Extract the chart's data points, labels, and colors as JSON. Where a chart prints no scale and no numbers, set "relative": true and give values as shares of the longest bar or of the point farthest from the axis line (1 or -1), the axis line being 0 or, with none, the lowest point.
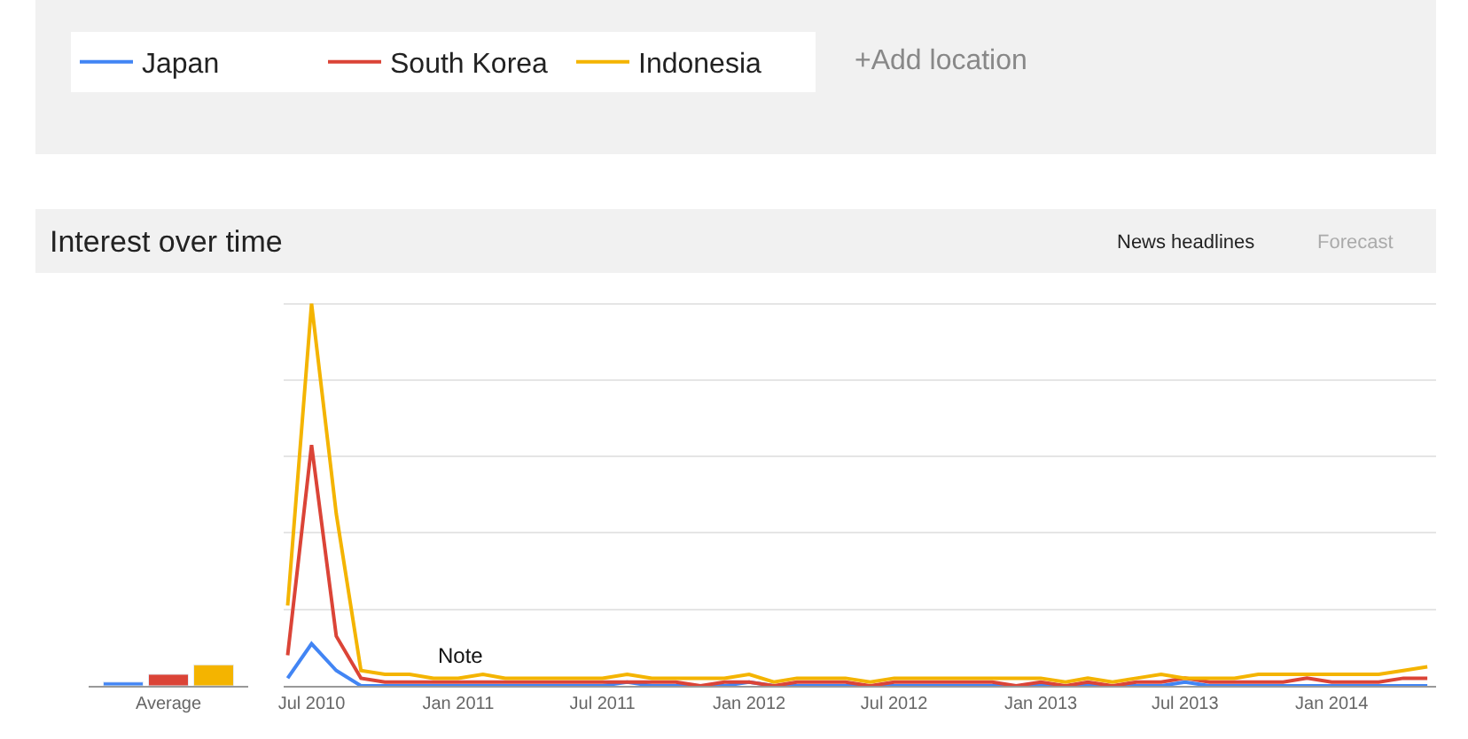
{
  "chart_data": [
    {
      "type": "bar",
      "relative": true,
      "categories": [
        "Average"
      ],
      "series": [
        {
          "color": "#4285f4",
          "values": [
            0.18
          ]
        },
        {
          "color": "#db4437",
          "values": [
            0.55
          ]
        },
        {
          "color": "#f4b400",
          "values": [
            1
          ]
        }
      ]
    },
    {
      "type": "line",
      "title": "Interest over time",
      "relative": true,
      "grid": "y",
      "legend": "top left",
      "marker": "none",
      "line_style": "solid",
      "annotations": [
        "+Add location",
        "News headlines",
        "Forecast",
        {
          "text": "Note",
          "x": "2010-12",
          "y": 0.03
        }
      ],
      "xlim": [
        "2010-05-27",
        "2014-05-12"
      ],
      "xticks": [
        {
          "value": "2010-07",
          "label": "Jul 2010"
        },
        {
          "value": "2011-01",
          "label": "Jan 2011"
        },
        {
          "value": "2011-07",
          "label": "Jul 2011"
        },
        {
          "value": "2012-01",
          "label": "Jan 2012"
        },
        {
          "value": "2012-07",
          "label": "Jul 2012"
        },
        {
          "value": "2013-01",
          "label": "Jan 2013"
        },
        {
          "value": "2013-07",
          "label": "Jul 2013"
        },
        {
          "value": "2014-01",
          "label": "Jan 2014"
        }
      ],
      "x": [
        "2010-06",
        "2010-07",
        "2010-08",
        "2010-09",
        "2010-10",
        "2010-11",
        "2010-12",
        "2011-01",
        "2011-02",
        "2011-03",
        "2011-04",
        "2011-05",
        "2011-06",
        "2011-07",
        "2011-08",
        "2011-09",
        "2011-10",
        "2011-11",
        "2011-12",
        "2012-01",
        "2012-02",
        "2012-03",
        "2012-04",
        "2012-05",
        "2012-06",
        "2012-07",
        "2012-08",
        "2012-09",
        "2012-10",
        "2012-11",
        "2012-12",
        "2013-01",
        "2013-02",
        "2013-03",
        "2013-04",
        "2013-05",
        "2013-06",
        "2013-07",
        "2013-08",
        "2013-09",
        "2013-10",
        "2013-11",
        "2013-12",
        "2014-01",
        "2014-02",
        "2014-03",
        "2014-04",
        "2014-05"
      ],
      "series": [
        {
          "name": "Japan",
          "color": "#4285f4",
          "values": [
            0.02,
            0.11,
            0.04,
            0,
            0,
            0,
            0,
            0,
            0,
            0,
            0,
            0,
            0,
            0,
            0.01,
            0,
            0,
            0,
            0,
            0.01,
            0,
            0,
            0,
            0,
            0,
            0,
            0,
            0,
            0,
            0,
            0,
            0,
            0,
            0,
            0,
            0,
            0,
            0.01,
            0,
            0,
            0,
            0,
            0,
            0,
            0,
            0,
            0,
            0
          ]
        },
        {
          "name": "South Korea",
          "color": "#db4437",
          "values": [
            0.08,
            0.63,
            0.13,
            0.02,
            0.01,
            0.01,
            0.01,
            0.01,
            0.01,
            0.01,
            0.01,
            0.01,
            0.01,
            0.01,
            0.01,
            0.01,
            0.01,
            0,
            0.01,
            0.01,
            0,
            0.01,
            0.01,
            0.01,
            0,
            0.01,
            0.01,
            0.01,
            0.01,
            0.01,
            0,
            0.01,
            0,
            0.01,
            0,
            0.01,
            0.01,
            0.02,
            0.01,
            0.01,
            0.01,
            0.01,
            0.02,
            0.01,
            0.01,
            0.01,
            0.02,
            0.02
          ]
        },
        {
          "name": "Indonesia",
          "color": "#f4b400",
          "values": [
            0.21,
            1,
            0.45,
            0.04,
            0.03,
            0.03,
            0.02,
            0.02,
            0.03,
            0.02,
            0.02,
            0.02,
            0.02,
            0.02,
            0.03,
            0.02,
            0.02,
            0.02,
            0.02,
            0.03,
            0.01,
            0.02,
            0.02,
            0.02,
            0.01,
            0.02,
            0.02,
            0.02,
            0.02,
            0.02,
            0.02,
            0.02,
            0.01,
            0.02,
            0.01,
            0.02,
            0.03,
            0.02,
            0.02,
            0.02,
            0.03,
            0.03,
            0.03,
            0.03,
            0.03,
            0.03,
            0.04,
            0.05
          ]
        }
      ]
    }
  ]
}
